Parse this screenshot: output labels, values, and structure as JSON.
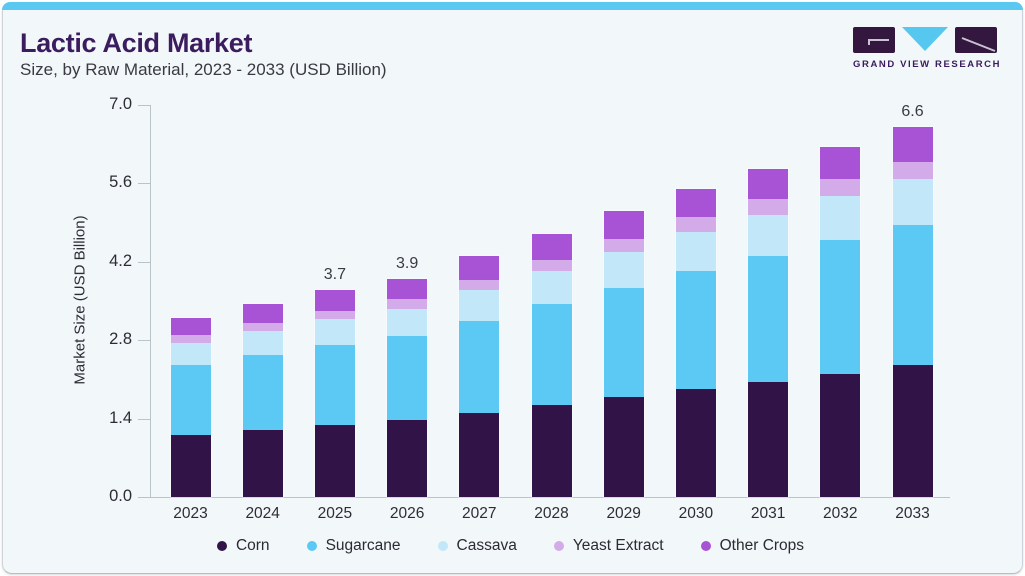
{
  "page": {
    "accent_color": "#5ac8f1",
    "card_bg": "#f2f7fa",
    "title_color": "#3b1c5e"
  },
  "header": {
    "title": "Lactic Acid Market",
    "subtitle": "Size, by Raw Material, 2023 - 2033 (USD Billion)"
  },
  "logo": {
    "text": "GRAND VIEW RESEARCH",
    "mark_dark_color": "#33173f",
    "mark_accent_color": "#56c8f0"
  },
  "chart_data": {
    "type": "bar",
    "stacked": true,
    "title": "Lactic Acid Market Size, by Raw Material, 2023 - 2033 (USD Billion)",
    "xlabel": "",
    "ylabel": "Market Size (USD Billion)",
    "ylim": [
      0,
      7.0
    ],
    "yticks": [
      0.0,
      1.4,
      2.8,
      4.2,
      5.6,
      7.0
    ],
    "grid": false,
    "legend_position": "bottom",
    "categories": [
      "2023",
      "2024",
      "2025",
      "2026",
      "2027",
      "2028",
      "2029",
      "2030",
      "2031",
      "2032",
      "2033"
    ],
    "series": [
      {
        "name": "Corn",
        "color": "#311347",
        "values": [
          1.1,
          1.19,
          1.28,
          1.37,
          1.5,
          1.64,
          1.78,
          1.93,
          2.06,
          2.2,
          2.35
        ]
      },
      {
        "name": "Sugarcane",
        "color": "#5cc8f4",
        "values": [
          1.25,
          1.34,
          1.43,
          1.5,
          1.65,
          1.8,
          1.95,
          2.11,
          2.24,
          2.39,
          2.5
        ]
      },
      {
        "name": "Cassava",
        "color": "#c1e7f9",
        "values": [
          0.4,
          0.43,
          0.46,
          0.49,
          0.54,
          0.59,
          0.64,
          0.7,
          0.74,
          0.79,
          0.82
        ]
      },
      {
        "name": "Yeast Extract",
        "color": "#d3abe9",
        "values": [
          0.14,
          0.15,
          0.16,
          0.17,
          0.19,
          0.21,
          0.23,
          0.26,
          0.28,
          0.3,
          0.32
        ]
      },
      {
        "name": "Other Crops",
        "color": "#a852d5",
        "values": [
          0.31,
          0.34,
          0.37,
          0.37,
          0.42,
          0.46,
          0.5,
          0.5,
          0.53,
          0.57,
          0.61
        ]
      }
    ],
    "totals": [
      3.2,
      3.45,
      3.7,
      3.9,
      4.3,
      4.7,
      5.1,
      5.5,
      5.85,
      6.25,
      6.6
    ],
    "data_labels": [
      {
        "category": "2025",
        "text": "3.7"
      },
      {
        "category": "2026",
        "text": "3.9"
      },
      {
        "category": "2033",
        "text": "6.6"
      }
    ]
  }
}
